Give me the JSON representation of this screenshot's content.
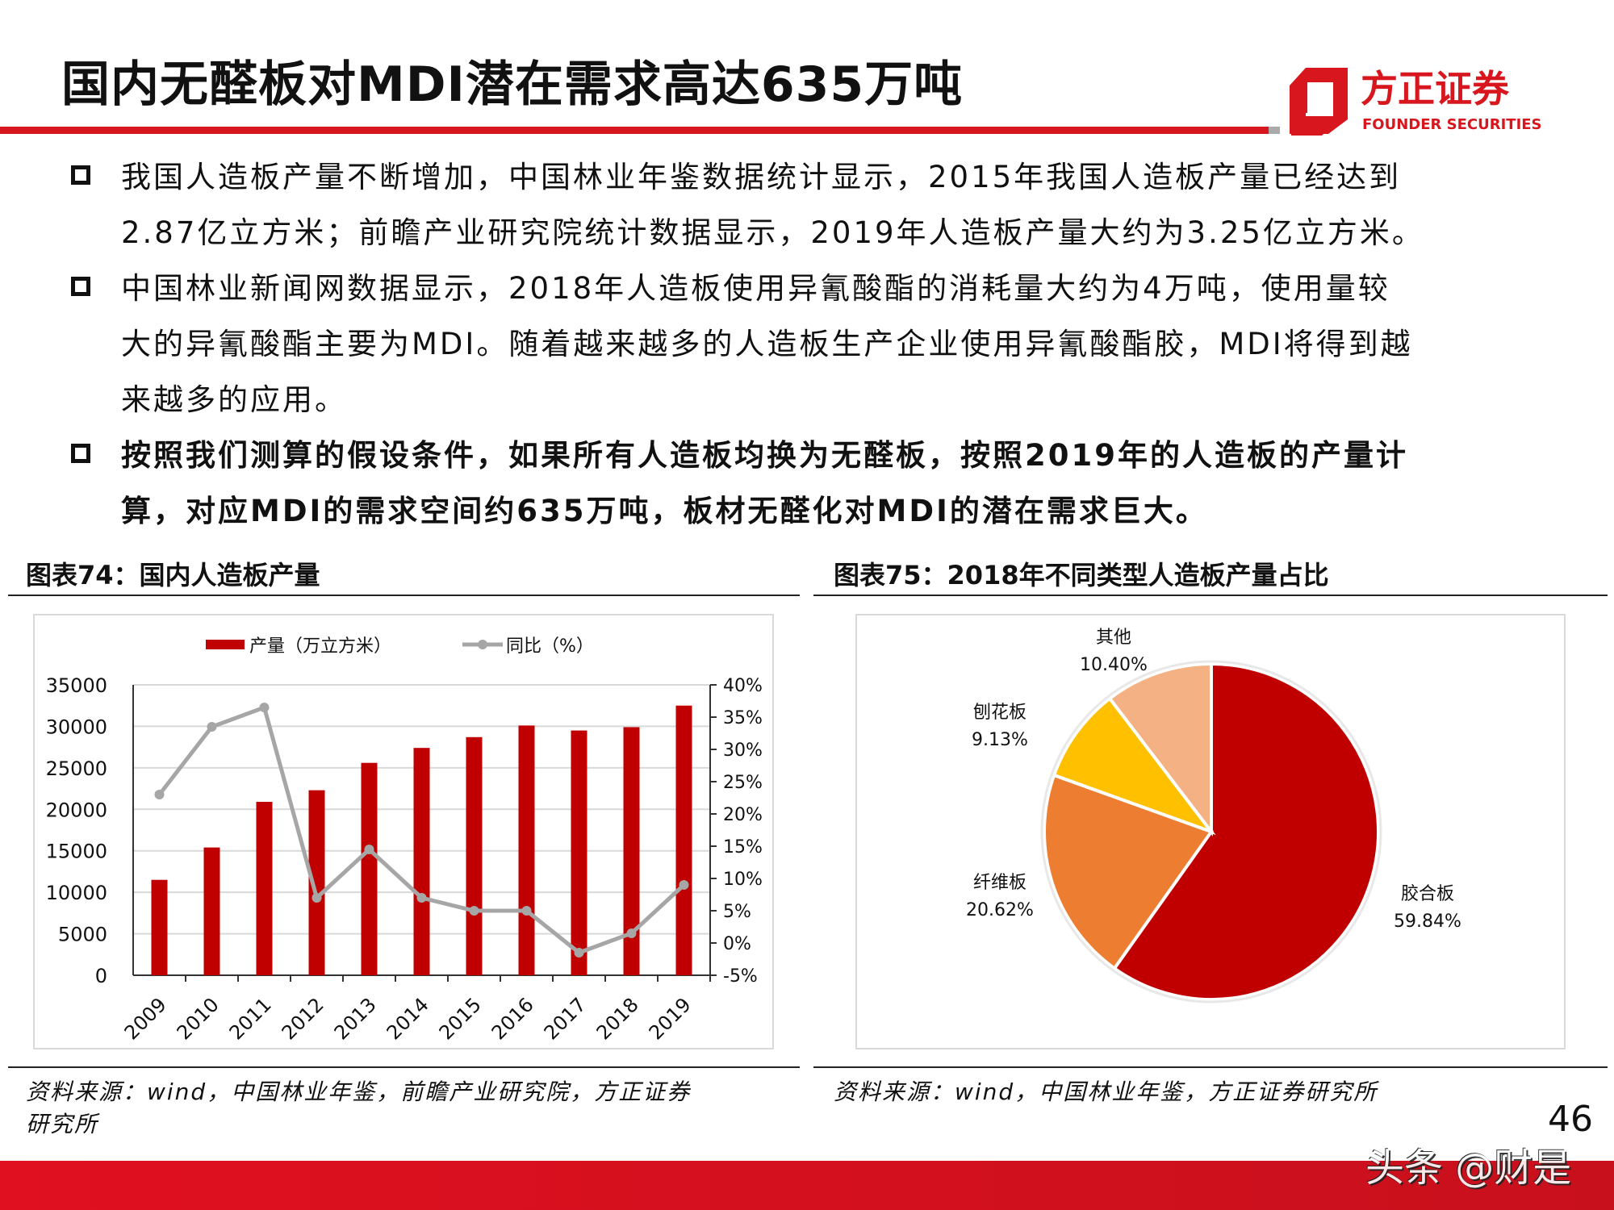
{
  "header": {
    "title": "国内无醛板对MDI潜在需求高达635万吨",
    "logo_cn": "方正证券",
    "logo_en": "FOUNDER SECURITIES",
    "brand_color": "#d7161e"
  },
  "bullets": [
    {
      "lines": [
        "我国人造板产量不断增加，中国林业年鉴数据统计显示，2015年我国人造板产量已经达到",
        "2.87亿立方米；前瞻产业研究院统计数据显示，2019年人造板产量大约为3.25亿立方米。"
      ],
      "bold": false
    },
    {
      "lines": [
        "中国林业新闻网数据显示，2018年人造板使用异氰酸酯的消耗量大约为4万吨，使用量较",
        "大的异氰酸酯主要为MDI。随着越来越多的人造板生产企业使用异氰酸酯胶，MDI将得到越",
        "来越多的应用。"
      ],
      "bold": false
    },
    {
      "lines": [
        "按照我们测算的假设条件，如果所有人造板均换为无醛板，按照2019年的人造板的产量计",
        "算，对应MDI的需求空间约635万吨，板材无醛化对MDI的潜在需求巨大。"
      ],
      "bold": true
    }
  ],
  "figure74": {
    "heading": "图表74：国内人造板产量",
    "source_lines": [
      "资料来源：wind，中国林业年鉴，前瞻产业研究院，方正证券",
      "研究所"
    ]
  },
  "figure75": {
    "heading": "图表75：2018年不同类型人造板产量占比",
    "source_lines": [
      "资料来源：wind，中国林业年鉴，方正证券研究所"
    ]
  },
  "chart_data": [
    {
      "type": "bar+line",
      "categories": [
        "2009",
        "2010",
        "2011",
        "2012",
        "2013",
        "2014",
        "2015",
        "2016",
        "2017",
        "2018",
        "2019"
      ],
      "series": [
        {
          "name": "产量（万立方米）",
          "type": "bar",
          "axis": "left",
          "color": "#c00000",
          "values": [
            11500,
            15400,
            20900,
            22300,
            25600,
            27400,
            28700,
            30100,
            29500,
            29900,
            32500
          ]
        },
        {
          "name": "同比（%）",
          "type": "line",
          "axis": "right",
          "color": "#a6a6a6",
          "values": [
            23,
            33.5,
            36.5,
            7,
            14.5,
            7,
            5,
            5,
            -1.5,
            1.5,
            9
          ]
        }
      ],
      "left_axis": {
        "ylim": [
          0,
          35000
        ],
        "ticks": [
          "0",
          "5000",
          "10000",
          "15000",
          "20000",
          "25000",
          "30000",
          "35000"
        ]
      },
      "right_axis": {
        "ylim": [
          -5,
          40
        ],
        "ticks": [
          "-5%",
          "0%",
          "5%",
          "10%",
          "15%",
          "20%",
          "25%",
          "30%",
          "35%",
          "40%"
        ]
      },
      "grid": true,
      "legend": "top"
    },
    {
      "type": "pie",
      "slices": [
        {
          "label": "胶合板",
          "value_label": "59.84%",
          "value": 59.84,
          "color": "#c00000"
        },
        {
          "label": "纤维板",
          "value_label": "20.62%",
          "value": 20.62,
          "color": "#ed7d31"
        },
        {
          "label": "刨花板",
          "value_label": "9.13%",
          "value": 9.13,
          "color": "#ffc000"
        },
        {
          "label": "其他",
          "value_label": "10.40%",
          "value": 10.4,
          "color": "#f4b183"
        }
      ]
    }
  ],
  "footer": {
    "page_number": "46",
    "watermark": "头条 @财是"
  }
}
